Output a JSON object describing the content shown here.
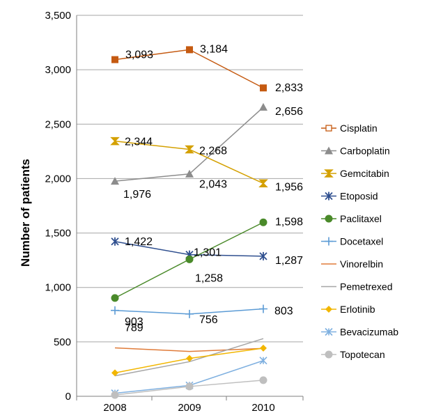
{
  "chart_data": {
    "type": "line",
    "ylabel": "Number of patients",
    "xlabel": "",
    "categories": [
      "2008",
      "2009",
      "2010"
    ],
    "ylim": [
      0,
      3500
    ],
    "yticks": [
      0,
      500,
      1000,
      1500,
      2000,
      2500,
      3000,
      3500
    ],
    "ytick_labels": [
      "0",
      "500",
      "1,000",
      "1,500",
      "2,000",
      "2,500",
      "3,000",
      "3,500"
    ],
    "grid": true,
    "legend_position": "right",
    "series": [
      {
        "name": "Cisplatin",
        "values": [
          3093,
          3184,
          2833
        ],
        "labels": [
          "3,093",
          "3,184",
          "2,833"
        ],
        "color": "#c55a11",
        "marker": "square"
      },
      {
        "name": "Carboplatin",
        "values": [
          1976,
          2043,
          2656
        ],
        "labels": [
          "1,976",
          "2,043",
          "2,656"
        ],
        "color": "#8c8c8c",
        "marker": "triangle"
      },
      {
        "name": "Gemcitabin",
        "values": [
          2344,
          2268,
          1956
        ],
        "labels": [
          "2,344",
          "2,268",
          "1,956"
        ],
        "color": "#d4a000",
        "marker": "hourglass"
      },
      {
        "name": "Etoposid",
        "values": [
          1422,
          1301,
          1287
        ],
        "labels": [
          "1,422",
          "1,301",
          "1,287"
        ],
        "color": "#2f4f8f",
        "marker": "star"
      },
      {
        "name": "Paclitaxel",
        "values": [
          903,
          1258,
          1598
        ],
        "labels": [
          "903",
          "1,258",
          "1,598"
        ],
        "color": "#4a8a2a",
        "marker": "circle"
      },
      {
        "name": "Docetaxel",
        "values": [
          789,
          756,
          803
        ],
        "labels": [
          "789",
          "756",
          "803"
        ],
        "color": "#5b9bd5",
        "marker": "plus"
      },
      {
        "name": "Vinorelbin",
        "values": [
          445,
          412,
          440
        ],
        "color": "#e07b39",
        "marker": "none"
      },
      {
        "name": "Pemetrexed",
        "values": [
          188,
          318,
          530
        ],
        "color": "#a6a6a6",
        "marker": "none"
      },
      {
        "name": "Erlotinib",
        "values": [
          215,
          348,
          442
        ],
        "color": "#f2b600",
        "marker": "diamond"
      },
      {
        "name": "Bevacizumab",
        "values": [
          28,
          100,
          328
        ],
        "color": "#7fb0e0",
        "marker": "x"
      },
      {
        "name": "Topotecan",
        "values": [
          12,
          90,
          148
        ],
        "color": "#bfbfbf",
        "marker": "circle"
      }
    ]
  }
}
